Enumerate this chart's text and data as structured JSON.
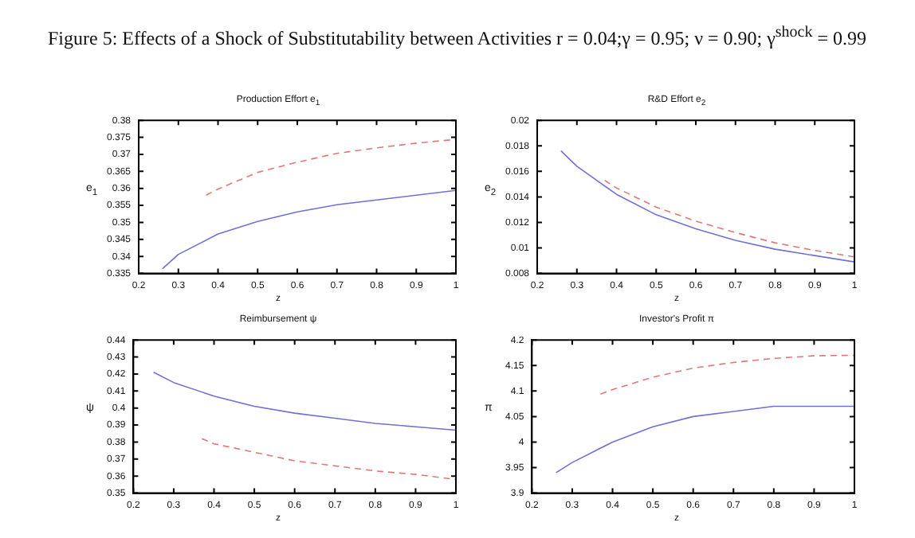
{
  "chart_data": [
    {
      "type": "line",
      "title": "Production Effort e$_{1}$",
      "xlabel": "z",
      "ylabel": "e$_{1}$",
      "annotations": [
        "Figure 5:  Effects of a Shock of Substitutability between Activities r = 0.04;γ = 0.95; ν = 0.90; γ$^{shock}$ = 0.99"
      ],
      "xlim": [
        0.2,
        1
      ],
      "xticks": [
        0.2,
        0.3,
        0.4,
        0.5,
        0.6,
        0.7,
        0.8,
        0.9,
        1
      ],
      "ylim": [
        0.335,
        0.38
      ],
      "yticks": [
        0.335,
        0.34,
        0.345,
        0.35,
        0.355,
        0.36,
        0.365,
        0.37,
        0.375,
        0.38
      ],
      "grid": false,
      "legend": false,
      "series": [
        {
          "color": "#7070d8",
          "line_style": "solid",
          "x": [
            0.26,
            0.3,
            0.4,
            0.5,
            0.6,
            0.7,
            0.8,
            0.9,
            1
          ],
          "values": [
            0.3364,
            0.3406,
            0.3466,
            0.3503,
            0.3531,
            0.3552,
            0.3566,
            0.358,
            0.3594
          ]
        },
        {
          "color": "#e07878",
          "line_style": "dashed",
          "x": [
            0.37,
            0.4,
            0.5,
            0.6,
            0.7,
            0.8,
            0.9,
            1
          ],
          "values": [
            0.358,
            0.3598,
            0.3647,
            0.3677,
            0.3703,
            0.3719,
            0.3733,
            0.3744
          ]
        }
      ]
    },
    {
      "type": "line",
      "title": "R&D Effort e$_{2}$",
      "xlabel": "z",
      "ylabel": "e$_{2}$",
      "xlim": [
        0.2,
        1
      ],
      "xticks": [
        0.2,
        0.3,
        0.4,
        0.5,
        0.6,
        0.7,
        0.8,
        0.9,
        1
      ],
      "ylim": [
        0.008,
        0.02
      ],
      "yticks": [
        0.008,
        0.01,
        0.012,
        0.014,
        0.016,
        0.018,
        0.02
      ],
      "grid": false,
      "legend": false,
      "series": [
        {
          "color": "#7070d8",
          "line_style": "solid",
          "x": [
            0.26,
            0.3,
            0.4,
            0.5,
            0.6,
            0.7,
            0.8,
            0.9,
            1
          ],
          "values": [
            0.0176,
            0.0164,
            0.0142,
            0.0126,
            0.0115,
            0.0106,
            0.0099,
            0.0094,
            0.0089
          ]
        },
        {
          "color": "#e07878",
          "line_style": "dashed",
          "x": [
            0.37,
            0.4,
            0.5,
            0.6,
            0.7,
            0.8,
            0.9,
            1
          ],
          "values": [
            0.0153,
            0.0147,
            0.0132,
            0.0121,
            0.0112,
            0.0104,
            0.0098,
            0.0093
          ]
        }
      ]
    },
    {
      "type": "line",
      "title": "Reimbursement ψ",
      "xlabel": "z",
      "ylabel": "ψ",
      "xlim": [
        0.2,
        1
      ],
      "xticks": [
        0.2,
        0.3,
        0.4,
        0.5,
        0.6,
        0.7,
        0.8,
        0.9,
        1
      ],
      "ylim": [
        0.35,
        0.44
      ],
      "yticks": [
        0.35,
        0.36,
        0.37,
        0.38,
        0.39,
        0.4,
        0.41,
        0.42,
        0.43,
        0.44
      ],
      "grid": false,
      "legend": false,
      "series": [
        {
          "color": "#7070d8",
          "line_style": "solid",
          "x": [
            0.25,
            0.3,
            0.4,
            0.5,
            0.6,
            0.7,
            0.8,
            0.9,
            1
          ],
          "values": [
            0.421,
            0.415,
            0.407,
            0.401,
            0.397,
            0.394,
            0.391,
            0.389,
            0.387
          ]
        },
        {
          "color": "#e07878",
          "line_style": "dashed",
          "x": [
            0.37,
            0.4,
            0.5,
            0.6,
            0.7,
            0.8,
            0.9,
            1
          ],
          "values": [
            0.382,
            0.379,
            0.374,
            0.369,
            0.366,
            0.363,
            0.361,
            0.358
          ]
        }
      ]
    },
    {
      "type": "line",
      "title": "Investor's Profit π",
      "xlabel": "z",
      "ylabel": "π",
      "xlim": [
        0.2,
        1
      ],
      "xticks": [
        0.2,
        0.3,
        0.4,
        0.5,
        0.6,
        0.7,
        0.8,
        0.9,
        1
      ],
      "ylim": [
        3.9,
        4.2
      ],
      "yticks": [
        3.9,
        3.95,
        4,
        4.05,
        4.1,
        4.15,
        4.2
      ],
      "grid": false,
      "legend": false,
      "series": [
        {
          "color": "#7070d8",
          "line_style": "solid",
          "x": [
            0.26,
            0.3,
            0.4,
            0.5,
            0.6,
            0.7,
            0.8,
            0.9,
            1
          ],
          "values": [
            3.94,
            3.96,
            4.0,
            4.03,
            4.05,
            4.06,
            4.07,
            4.07,
            4.07
          ]
        },
        {
          "color": "#e07878",
          "line_style": "dashed",
          "x": [
            0.37,
            0.4,
            0.5,
            0.6,
            0.7,
            0.8,
            0.9,
            1
          ],
          "values": [
            4.094,
            4.103,
            4.127,
            4.145,
            4.156,
            4.164,
            4.169,
            4.17
          ]
        }
      ]
    }
  ]
}
